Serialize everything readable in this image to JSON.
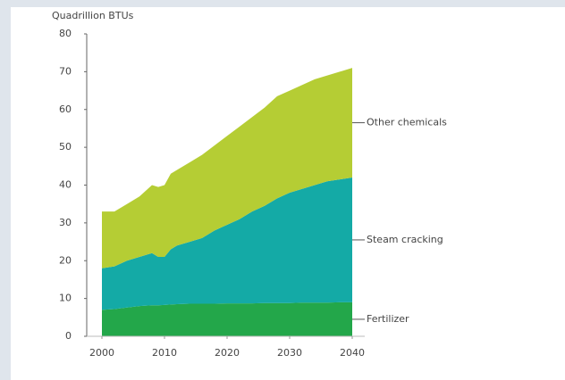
{
  "chart_data": {
    "type": "stacked_area",
    "y_label": "Quadrillion BTUs",
    "x": [
      2000,
      2002,
      2004,
      2006,
      2008,
      2009,
      2010,
      2011,
      2012,
      2014,
      2016,
      2018,
      2020,
      2022,
      2024,
      2026,
      2028,
      2030,
      2032,
      2034,
      2036,
      2038,
      2040
    ],
    "series": [
      {
        "name": "Fertilizer",
        "color": "#23a74a",
        "values": [
          7,
          7.2,
          7.6,
          8,
          8.2,
          8.2,
          8.3,
          8.4,
          8.5,
          8.6,
          8.6,
          8.6,
          8.7,
          8.7,
          8.7,
          8.8,
          8.8,
          8.8,
          8.9,
          8.9,
          8.9,
          9,
          9
        ]
      },
      {
        "name": "Steam cracking",
        "color": "#14aaa6",
        "values": [
          11,
          11.3,
          12.4,
          13,
          13.8,
          12.8,
          12.7,
          14.6,
          15.5,
          16.4,
          17.4,
          19.4,
          20.8,
          22.3,
          24.3,
          25.7,
          27.7,
          29.2,
          30.1,
          31.1,
          32.1,
          32.5,
          33
        ]
      },
      {
        "name": "Other chemicals",
        "color": "#b5cd34",
        "values": [
          15,
          14.5,
          15,
          16,
          18,
          18.5,
          19,
          20,
          20,
          21,
          22,
          22.5,
          23.5,
          24.5,
          25,
          26,
          27,
          27,
          27.5,
          28,
          28,
          28.5,
          29
        ]
      }
    ],
    "xlim": [
      2000,
      2040
    ],
    "xticks": [
      2000,
      2010,
      2020,
      2030,
      2040
    ],
    "ylim": [
      0,
      80
    ],
    "yticks": [
      0,
      10,
      20,
      30,
      40,
      50,
      60,
      70,
      80
    ]
  }
}
